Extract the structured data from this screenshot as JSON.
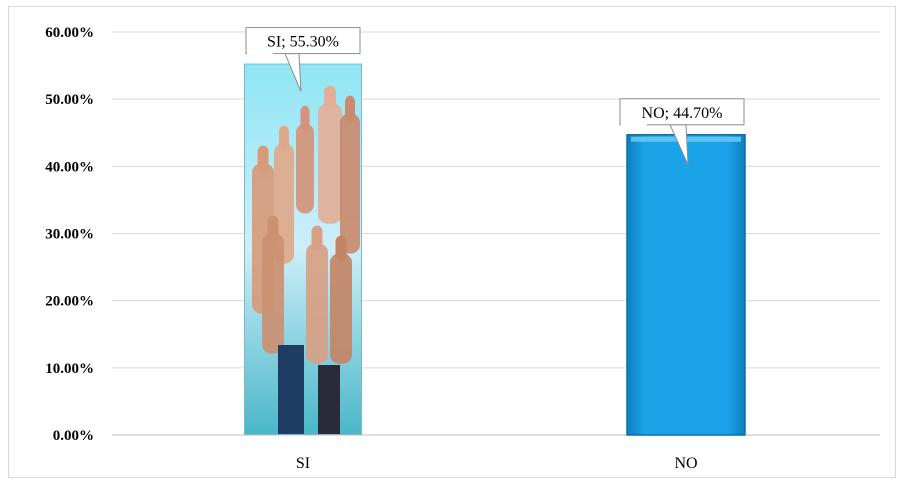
{
  "chart_data": {
    "type": "bar",
    "categories": [
      "SI",
      "NO"
    ],
    "values": [
      55.3,
      44.7
    ],
    "data_labels": [
      "SI; 55.30%",
      "NO; 44.70%"
    ],
    "ylim": [
      0,
      60
    ],
    "y_ticks": [
      "0.00%",
      "10.00%",
      "20.00%",
      "30.00%",
      "40.00%",
      "50.00%",
      "60.00%"
    ],
    "grid": true,
    "legend": "none",
    "colors": {
      "bar_no": "#1aa3e8",
      "bar_si_sky": "#9fe3f5",
      "grid": "#d9d9d9"
    }
  }
}
